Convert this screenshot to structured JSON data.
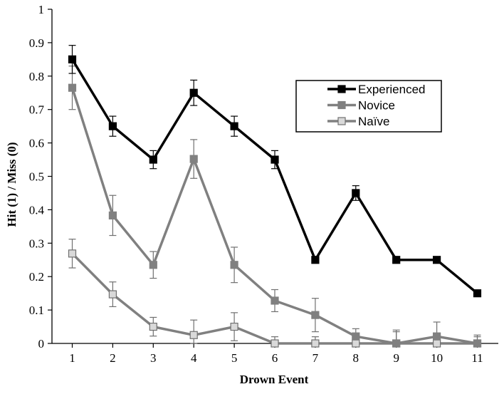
{
  "chart_data": {
    "type": "line",
    "title": "",
    "xlabel": "Drown Event",
    "ylabel": "Hit (1) / Miss (0)",
    "x": [
      1,
      2,
      3,
      4,
      5,
      6,
      7,
      8,
      9,
      10,
      11
    ],
    "xlim": [
      0.5,
      11.5
    ],
    "ylim": [
      0,
      1
    ],
    "yticks": [
      0,
      0.1,
      0.2,
      0.3,
      0.4,
      0.5,
      0.6,
      0.7,
      0.8,
      0.9,
      1
    ],
    "yticklabels": [
      "0",
      "0.1",
      "0.2",
      "0.3",
      "0.4",
      "0.5",
      "0.6",
      "0.7",
      "0.8",
      "0.9",
      "1"
    ],
    "xticklabels": [
      "1",
      "2",
      "3",
      "4",
      "5",
      "6",
      "7",
      "8",
      "9",
      "10",
      "11"
    ],
    "grid": false,
    "legend_position": "top-right",
    "series": [
      {
        "name": "Experienced",
        "color": "#000000",
        "marker_fill": "#000000",
        "values": [
          0.85,
          0.65,
          0.55,
          0.75,
          0.65,
          0.55,
          0.25,
          0.45,
          0.25,
          0.25,
          0.15
        ],
        "error": [
          0.042,
          0.03,
          0.027,
          0.038,
          0.03,
          0.027,
          0.0,
          0.022,
          0.0,
          0.008,
          0.0
        ]
      },
      {
        "name": "Novice",
        "color": "#808080",
        "marker_fill": "#808080",
        "values": [
          0.765,
          0.383,
          0.235,
          0.552,
          0.235,
          0.128,
          0.085,
          0.021,
          0.0,
          0.021,
          0.0
        ],
        "error": [
          0.065,
          0.06,
          0.04,
          0.058,
          0.053,
          0.033,
          0.05,
          0.023,
          0.04,
          0.043,
          0.02
        ]
      },
      {
        "name": "Naïve",
        "color": "#808080",
        "marker_fill": "#d9d9d9",
        "values": [
          0.269,
          0.147,
          0.05,
          0.025,
          0.05,
          0.0,
          0.0,
          0.0,
          0.0,
          0.0,
          0.0
        ],
        "error": [
          0.043,
          0.037,
          0.028,
          0.045,
          0.042,
          0.02,
          0.02,
          0.02,
          0.035,
          0.02,
          0.025
        ]
      }
    ]
  }
}
